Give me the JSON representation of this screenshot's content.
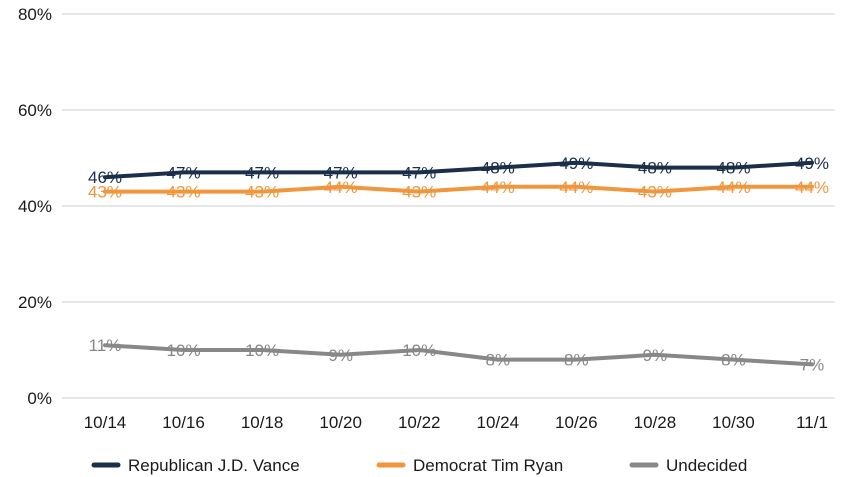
{
  "chart_data": {
    "type": "line",
    "categories": [
      "10/14",
      "10/16",
      "10/18",
      "10/20",
      "10/22",
      "10/24",
      "10/26",
      "10/28",
      "10/30",
      "11/1"
    ],
    "series": [
      {
        "name": "Republican J.D. Vance",
        "color": "#1b2f4a",
        "values": [
          46,
          47,
          47,
          47,
          47,
          48,
          49,
          48,
          48,
          49
        ],
        "labels": [
          "46%",
          "47%",
          "47%",
          "47%",
          "47%",
          "48%",
          "49%",
          "48%",
          "48%",
          "49%"
        ]
      },
      {
        "name": "Democrat Tim Ryan",
        "color": "#f0963c",
        "values": [
          43,
          43,
          43,
          44,
          43,
          44,
          44,
          43,
          44,
          44
        ],
        "labels": [
          "43%",
          "43%",
          "43%",
          "44%",
          "43%",
          "44%",
          "44%",
          "43%",
          "44%",
          "44%"
        ]
      },
      {
        "name": "Undecided",
        "color": "#888888",
        "values": [
          11,
          10,
          10,
          9,
          10,
          8,
          8,
          9,
          8,
          7
        ],
        "labels": [
          "11%",
          "10%",
          "10%",
          "9%",
          "10%",
          "8%",
          "8%",
          "9%",
          "8%",
          "7%"
        ]
      }
    ],
    "y_ticks": [
      0,
      20,
      40,
      60,
      80
    ],
    "y_tick_labels": [
      "0%",
      "20%",
      "40%",
      "60%",
      "80%"
    ],
    "ylim": [
      0,
      80
    ],
    "grid": true,
    "legend_position": "bottom",
    "title": "",
    "xlabel": "",
    "ylabel": ""
  }
}
